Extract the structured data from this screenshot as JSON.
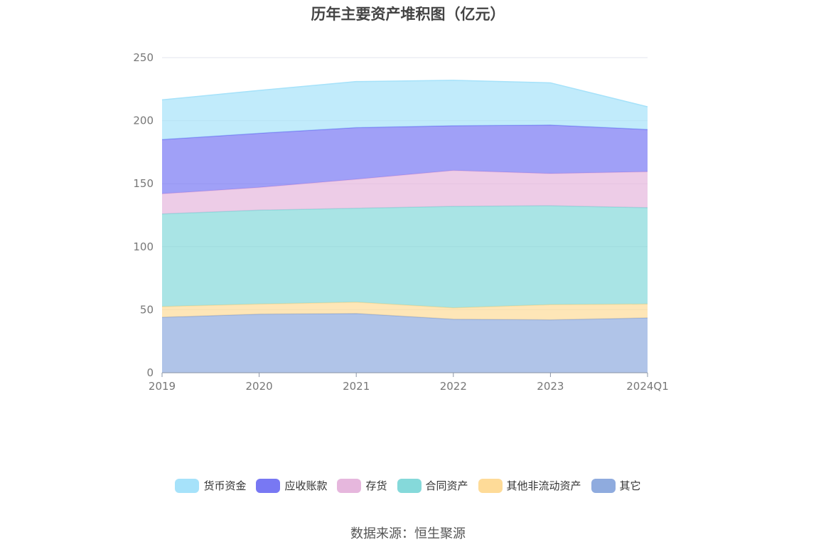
{
  "chart_data": {
    "type": "area",
    "stacked": true,
    "title": "历年主要资产堆积图（亿元）",
    "categories": [
      "2019",
      "2020",
      "2021",
      "2022",
      "2023",
      "2024Q1"
    ],
    "ylim": [
      0,
      250
    ],
    "yticks": [
      0,
      50,
      100,
      150,
      200,
      250
    ],
    "grid": true,
    "legend_position": "bottom",
    "series": [
      {
        "name": "其它",
        "color": "#8fabde",
        "values": [
          44,
          46.5,
          47,
          42.5,
          42,
          43.5
        ]
      },
      {
        "name": "其他非流动资产",
        "color": "#fedb98",
        "values": [
          8.5,
          8,
          9,
          9,
          12,
          11
        ]
      },
      {
        "name": "合同资产",
        "color": "#85d9da",
        "values": [
          73.5,
          74.5,
          74.5,
          80.5,
          78.5,
          76.5
        ]
      },
      {
        "name": "存货",
        "color": "#e6b7dd",
        "values": [
          16,
          18,
          23,
          28.5,
          25.5,
          28.5
        ]
      },
      {
        "name": "应收账款",
        "color": "#7878f3",
        "values": [
          43,
          43,
          41,
          35.5,
          38.5,
          33.5
        ]
      },
      {
        "name": "货币资金",
        "color": "#a6e2fa",
        "values": [
          31.5,
          34,
          36.5,
          36,
          33.5,
          18
        ]
      }
    ],
    "legend_order": [
      "货币资金",
      "应收账款",
      "存货",
      "合同资产",
      "其他非流动资产",
      "其它"
    ]
  },
  "source": "数据来源：恒生聚源"
}
